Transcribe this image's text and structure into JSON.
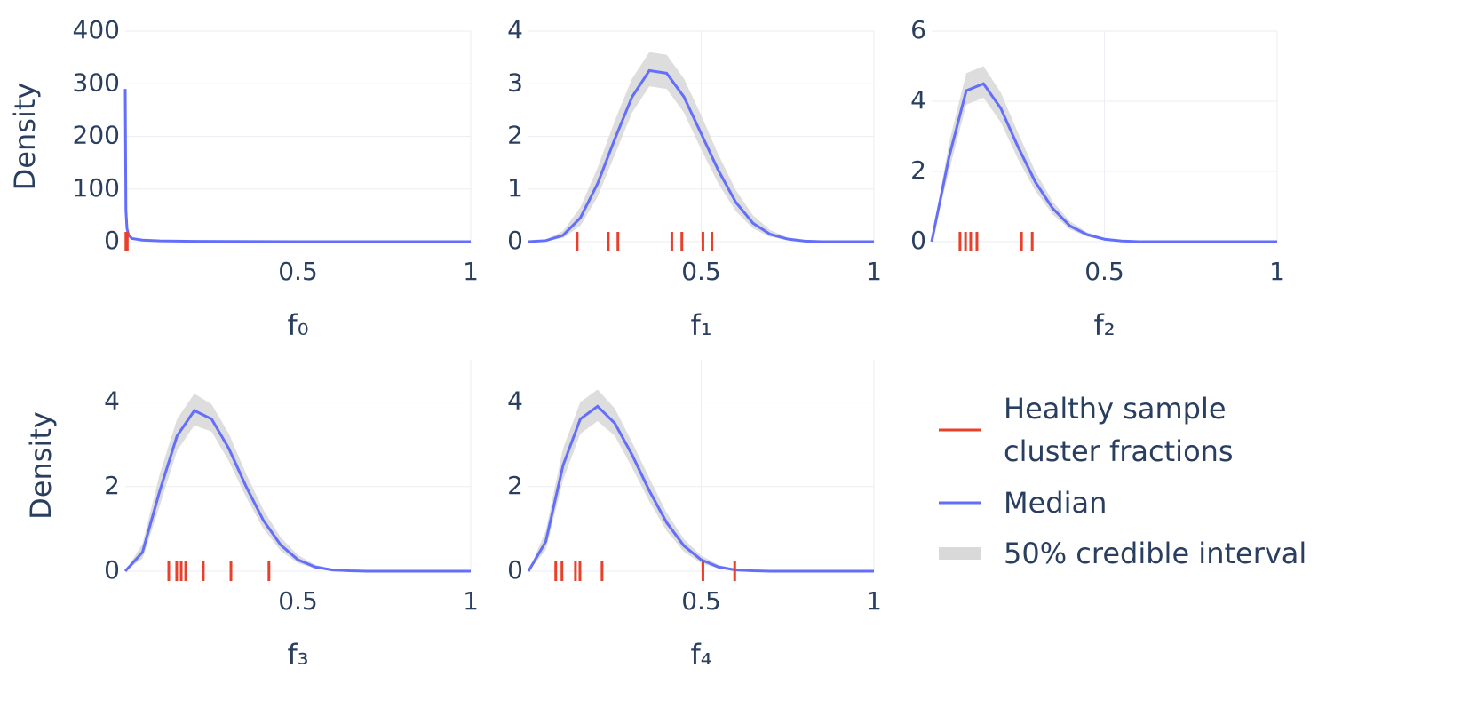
{
  "chart_data": [
    {
      "type": "density",
      "xlabel": "f₀",
      "ylabel": "Density",
      "x": [
        0,
        0.002,
        0.005,
        0.01,
        0.02,
        0.05,
        0.1,
        0.2,
        0.3,
        0.4,
        0.5,
        0.6,
        0.7,
        0.8,
        0.9,
        1
      ],
      "series": [
        {
          "name": "50% credible interval",
          "color": "#d9d9d9",
          "lower": [
            260,
            50,
            21,
            10,
            5,
            2.4,
            1.2,
            0.5,
            0.25,
            0.13,
            0.06,
            0.03,
            0.02,
            0.01,
            0,
            0
          ],
          "upper": [
            320,
            70,
            29,
            14,
            7,
            3.6,
            1.8,
            0.9,
            0.45,
            0.27,
            0.15,
            0.08,
            0.05,
            0.03,
            0.02,
            0.01
          ]
        },
        {
          "name": "Median",
          "color": "#636efa",
          "values": [
            290,
            60,
            25,
            12,
            6,
            3,
            1.5,
            0.7,
            0.35,
            0.2,
            0.1,
            0.05,
            0.03,
            0.02,
            0.01,
            0
          ]
        },
        {
          "name": "Healthy sample cluster fractions",
          "color": "#e8402a",
          "rug": [
            0.002,
            0.004,
            0.006
          ]
        }
      ],
      "xlim": [
        0,
        1
      ],
      "xticks": [
        0.5,
        1
      ],
      "ylim": [
        0,
        400
      ],
      "yticks": [
        0,
        100,
        200,
        300,
        400
      ],
      "grid": true
    },
    {
      "type": "density",
      "xlabel": "f₁",
      "x": [
        0,
        0.05,
        0.1,
        0.15,
        0.2,
        0.25,
        0.3,
        0.35,
        0.4,
        0.45,
        0.5,
        0.55,
        0.6,
        0.65,
        0.7,
        0.75,
        0.8,
        0.85,
        0.9,
        0.95,
        1
      ],
      "series": [
        {
          "color": "#d9d9d9",
          "lower": [
            0,
            0.01,
            0.07,
            0.3,
            0.85,
            1.65,
            2.45,
            2.95,
            2.9,
            2.45,
            1.75,
            1.1,
            0.58,
            0.25,
            0.09,
            0.03,
            0,
            0,
            0,
            0,
            0
          ],
          "upper": [
            0,
            0.04,
            0.2,
            0.65,
            1.4,
            2.3,
            3.1,
            3.6,
            3.55,
            3.1,
            2.4,
            1.65,
            0.98,
            0.5,
            0.22,
            0.08,
            0.03,
            0.01,
            0,
            0,
            0
          ]
        },
        {
          "color": "#636efa",
          "values": [
            0,
            0.02,
            0.12,
            0.45,
            1.1,
            1.95,
            2.75,
            3.25,
            3.2,
            2.75,
            2.05,
            1.35,
            0.75,
            0.35,
            0.14,
            0.05,
            0.01,
            0,
            0,
            0,
            0
          ]
        },
        {
          "color": "#e8402a",
          "rug": [
            0.141,
            0.231,
            0.259,
            0.415,
            0.444,
            0.505,
            0.531
          ]
        }
      ],
      "xlim": [
        0,
        1
      ],
      "xticks": [
        0.5,
        1
      ],
      "ylim": [
        0,
        4
      ],
      "yticks": [
        0,
        1,
        2,
        3,
        4
      ],
      "grid": true
    },
    {
      "type": "density",
      "xlabel": "f₂",
      "x": [
        0,
        0.05,
        0.1,
        0.15,
        0.2,
        0.25,
        0.3,
        0.35,
        0.4,
        0.45,
        0.5,
        0.55,
        0.6,
        0.65,
        0.7,
        0.75,
        0.8,
        0.85,
        0.9,
        0.95,
        1
      ],
      "series": [
        {
          "color": "#d9d9d9",
          "lower": [
            0,
            2.0,
            3.9,
            4.1,
            3.4,
            2.35,
            1.45,
            0.78,
            0.35,
            0.14,
            0.04,
            0.01,
            0,
            0,
            0,
            0,
            0,
            0,
            0,
            0,
            0
          ],
          "upper": [
            0,
            2.8,
            4.8,
            5.0,
            4.25,
            3.1,
            2.0,
            1.15,
            0.58,
            0.27,
            0.11,
            0.04,
            0.01,
            0,
            0,
            0,
            0,
            0,
            0,
            0,
            0
          ]
        },
        {
          "color": "#636efa",
          "values": [
            0,
            2.4,
            4.3,
            4.5,
            3.8,
            2.7,
            1.7,
            0.95,
            0.45,
            0.2,
            0.07,
            0.02,
            0,
            0,
            0,
            0,
            0,
            0,
            0,
            0,
            0
          ]
        },
        {
          "color": "#e8402a",
          "rug": [
            0.082,
            0.098,
            0.113,
            0.131,
            0.26,
            0.291
          ]
        }
      ],
      "xlim": [
        0,
        1
      ],
      "xticks": [
        0.5,
        1
      ],
      "ylim": [
        0,
        6
      ],
      "yticks": [
        0,
        2,
        4,
        6
      ],
      "grid": true
    },
    {
      "type": "density",
      "xlabel": "f₃",
      "ylabel": "Density",
      "x": [
        0,
        0.05,
        0.1,
        0.15,
        0.2,
        0.25,
        0.3,
        0.35,
        0.4,
        0.45,
        0.5,
        0.55,
        0.6,
        0.65,
        0.7,
        0.75,
        0.8,
        0.85,
        0.9,
        0.95,
        1
      ],
      "series": [
        {
          "color": "#d9d9d9",
          "lower": [
            0,
            0.3,
            1.55,
            2.85,
            3.45,
            3.3,
            2.6,
            1.75,
            1.0,
            0.48,
            0.19,
            0.06,
            0.02,
            0,
            0,
            0,
            0,
            0,
            0,
            0,
            0
          ],
          "upper": [
            0,
            0.65,
            2.3,
            3.6,
            4.2,
            3.95,
            3.25,
            2.3,
            1.45,
            0.8,
            0.38,
            0.15,
            0.05,
            0.02,
            0,
            0,
            0,
            0,
            0,
            0,
            0
          ]
        },
        {
          "color": "#636efa",
          "values": [
            0,
            0.45,
            1.9,
            3.2,
            3.8,
            3.6,
            2.9,
            2.0,
            1.2,
            0.62,
            0.27,
            0.1,
            0.03,
            0.01,
            0,
            0,
            0,
            0,
            0,
            0,
            0
          ]
        },
        {
          "color": "#e8402a",
          "rug": [
            0.126,
            0.149,
            0.162,
            0.175,
            0.226,
            0.306,
            0.416
          ]
        }
      ],
      "xlim": [
        0,
        1
      ],
      "xticks": [
        0.5,
        1
      ],
      "ylim": [
        0,
        5
      ],
      "yticks": [
        0,
        2,
        4
      ],
      "grid": true
    },
    {
      "type": "density",
      "xlabel": "f₄",
      "x": [
        0,
        0.05,
        0.1,
        0.15,
        0.2,
        0.25,
        0.3,
        0.35,
        0.4,
        0.45,
        0.5,
        0.55,
        0.6,
        0.65,
        0.7,
        0.75,
        0.8,
        0.85,
        0.9,
        0.95,
        1
      ],
      "series": [
        {
          "color": "#d9d9d9",
          "lower": [
            0,
            0.5,
            2.15,
            3.25,
            3.55,
            3.2,
            2.45,
            1.65,
            0.95,
            0.46,
            0.19,
            0.06,
            0.02,
            0,
            0,
            0,
            0,
            0,
            0,
            0,
            0
          ],
          "upper": [
            0,
            0.95,
            2.9,
            4.0,
            4.3,
            3.85,
            3.05,
            2.2,
            1.38,
            0.76,
            0.37,
            0.15,
            0.05,
            0.02,
            0,
            0,
            0,
            0,
            0,
            0,
            0
          ]
        },
        {
          "color": "#636efa",
          "values": [
            0,
            0.7,
            2.5,
            3.6,
            3.9,
            3.5,
            2.75,
            1.9,
            1.15,
            0.6,
            0.27,
            0.1,
            0.03,
            0.01,
            0,
            0,
            0,
            0,
            0,
            0,
            0
          ]
        },
        {
          "color": "#e8402a",
          "rug": [
            0.079,
            0.097,
            0.136,
            0.149,
            0.213,
            0.505,
            0.597
          ]
        }
      ],
      "xlim": [
        0,
        1
      ],
      "xticks": [
        0.5,
        1
      ],
      "ylim": [
        0,
        5
      ],
      "yticks": [
        0,
        2,
        4
      ],
      "grid": true
    }
  ]
}
